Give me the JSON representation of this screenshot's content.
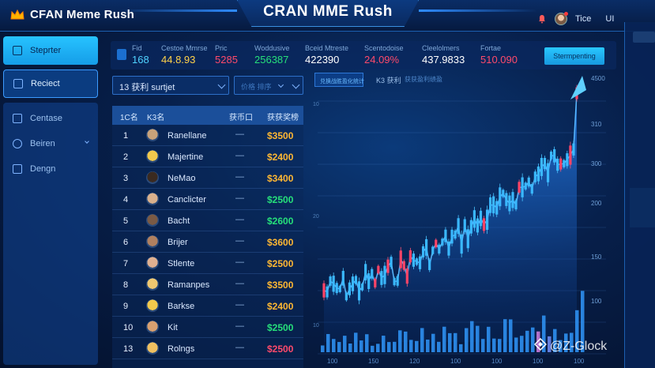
{
  "header": {
    "logo_text": "CFAN Meme Rush",
    "title": "CRAN MME Rush",
    "user_name": "Tice",
    "extra": "UI"
  },
  "sidebar": {
    "primary_button": "Steprter",
    "active_button": "Reciect",
    "items": [
      {
        "label": "Centase",
        "icon": "hexagon-icon"
      },
      {
        "label": "Beiren",
        "icon": "shield-icon"
      },
      {
        "label": "Dengn",
        "icon": "grid-icon"
      }
    ]
  },
  "stats": [
    {
      "label": "Fid",
      "value": "168",
      "color": "#4fd2ff"
    },
    {
      "label": "Cestoe Mmrse",
      "value": "44.8.93",
      "color": "#ffd24a"
    },
    {
      "label": "Pric",
      "value": "5285",
      "color": "#ff4a6b"
    },
    {
      "label": "Woddusive",
      "value": "256387",
      "color": "#26e07a"
    },
    {
      "label": "Bceid Mtreste",
      "value": "422390",
      "color": "#ffffff"
    },
    {
      "label": "Scentodoise",
      "value": "24.09%",
      "color": "#ff4a6b"
    },
    {
      "label": "Cleelolmers",
      "value": "437.9833",
      "color": "#ffffff"
    },
    {
      "label": "Fortae",
      "value": "510.090",
      "color": "#ff4a6b"
    }
  ],
  "stats_button": "Stermpenting",
  "filters": {
    "select1_value": "13 获利    surtjet",
    "select2_value": "价格 排序"
  },
  "table": {
    "headers": [
      "1C名",
      "K3名",
      "获币口",
      "获获奖榜"
    ],
    "rows": [
      {
        "rank": "1",
        "name": "Ranellane",
        "dash": "—",
        "prize": "$3500",
        "color": "#ffb833"
      },
      {
        "rank": "2",
        "name": "Majertine",
        "dash": "—",
        "prize": "$2400",
        "color": "#ffb833"
      },
      {
        "rank": "3",
        "name": "NeMao",
        "dash": "—",
        "prize": "$3400",
        "color": "#ffb833"
      },
      {
        "rank": "4",
        "name": "Canclicter",
        "dash": "—",
        "prize": "$2500",
        "color": "#26e07a"
      },
      {
        "rank": "5",
        "name": "Bacht",
        "dash": "—",
        "prize": "$2600",
        "color": "#26e07a"
      },
      {
        "rank": "6",
        "name": "Brijer",
        "dash": "—",
        "prize": "$3600",
        "color": "#ffb833"
      },
      {
        "rank": "7",
        "name": "Stlente",
        "dash": "—",
        "prize": "$2500",
        "color": "#ffb833"
      },
      {
        "rank": "8",
        "name": "Ramanpes",
        "dash": "—",
        "prize": "$3500",
        "color": "#ffb833"
      },
      {
        "rank": "9",
        "name": "Barkse",
        "dash": "—",
        "prize": "$2400",
        "color": "#ffb833"
      },
      {
        "rank": "10",
        "name": "Kit",
        "dash": "—",
        "prize": "$2500",
        "color": "#26e07a"
      },
      {
        "rank": "13",
        "name": "Rolngs",
        "dash": "—",
        "prize": "$2500",
        "color": "#ff4a6b"
      }
    ]
  },
  "chart_tabs": [
    "兑换战胜盈化统计",
    "K3 获利",
    "获获盈利绩盈"
  ],
  "chart_y_labels": [
    "4500",
    "310",
    "300",
    "200",
    "150",
    "100"
  ],
  "chart_x_labels": [
    "100",
    "150",
    "120",
    "100",
    "100",
    "100",
    "100"
  ],
  "chart_left_labels": [
    "10",
    "20",
    "10"
  ],
  "watermark": "@Z-Glock"
}
